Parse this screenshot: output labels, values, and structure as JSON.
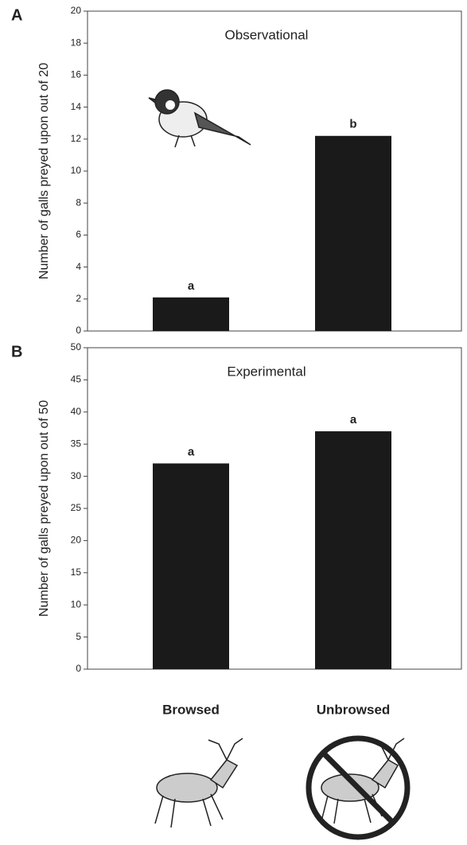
{
  "chart_data": [
    {
      "type": "bar",
      "panel": "A",
      "title": "Observational",
      "ylabel": "Number of galls preyed upon out of 20",
      "categories": [
        null,
        null
      ],
      "values": [
        2.1,
        12.2
      ],
      "annotations": [
        "a",
        "b"
      ],
      "color": "#1a1a1a",
      "ylim": [
        0,
        20
      ],
      "yticks": [
        0,
        2,
        4,
        6,
        8,
        10,
        12,
        14,
        16,
        18,
        20
      ]
    },
    {
      "type": "bar",
      "panel": "B",
      "title": "Experimental",
      "ylabel": "Number of galls preyed upon out of 50",
      "categories": [
        "Browsed",
        "Unbrowsed"
      ],
      "values": [
        32,
        37
      ],
      "annotations": [
        "a",
        "a"
      ],
      "color": "#1a1a1a",
      "ylim": [
        0,
        50
      ],
      "yticks": [
        0,
        5,
        10,
        15,
        20,
        25,
        30,
        35,
        40,
        45,
        50
      ]
    }
  ]
}
